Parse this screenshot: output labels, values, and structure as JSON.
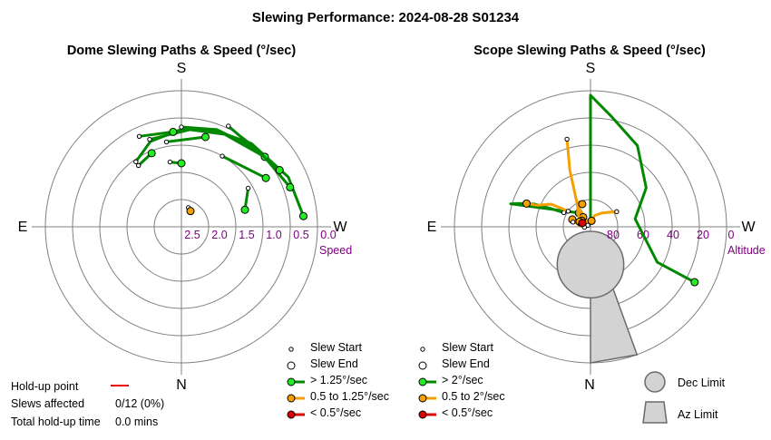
{
  "title": "Slewing Performance: 2024-08-28 S01234",
  "colors": {
    "grid": "#808080",
    "slow": "#dd0000",
    "medium": "#f5a000",
    "fast": "#008800",
    "fast_marker": "#22ee22",
    "accent_text": "#800080",
    "limit_fill": "#d3d3d3",
    "limit_stroke": "#6b6b6b",
    "holdup": "#ee0000"
  },
  "holdup": {
    "point_label": "Hold-up point",
    "slews_label": "Slews affected",
    "slews_value": "0/12 (0%)",
    "total_label": "Total hold-up time",
    "total_value": "0.0 mins"
  },
  "chart_data": [
    {
      "type": "polar-scatter",
      "title": "Dome Slewing Paths & Speed (°/sec)",
      "compass": {
        "top": "S",
        "bottom": "N",
        "left": "E",
        "right": "W"
      },
      "radial_axis_title": "Speed",
      "radial_ticks": [
        "2.5",
        "2.0",
        "1.5",
        "1.0",
        "0.5",
        "0.0"
      ],
      "radial_range": [
        3.0,
        0.0
      ],
      "legend": {
        "start": "Slew Start",
        "end": "Slew End",
        "fast": "> 1.25°/sec",
        "medium": "0.5 to 1.25°/sec",
        "slow": "< 0.5°/sec"
      },
      "slews": [
        {
          "speed": "fast",
          "path": [
            [
              145,
              1.25
            ],
            [
              160,
              1.0
            ],
            [
              180,
              0.85
            ],
            [
              200,
              0.75
            ],
            [
              220,
              0.6
            ],
            [
              245,
              0.4
            ],
            [
              265,
              0.3
            ]
          ]
        },
        {
          "speed": "fast",
          "path": [
            [
              180,
              0.8
            ],
            [
              200,
              0.72
            ],
            [
              225,
              0.6
            ],
            [
              250,
              0.45
            ]
          ]
        },
        {
          "speed": "fast",
          "path": [
            [
              160,
              0.95
            ],
            [
              185,
              0.85
            ],
            [
              205,
              0.75
            ],
            [
              230,
              0.6
            ]
          ]
        },
        {
          "speed": "fast",
          "path": [
            [
              170,
              1.1
            ],
            [
              195,
              0.95
            ]
          ]
        },
        {
          "speed": "fast",
          "path": [
            [
              145,
              1.35
            ],
            [
              158,
              1.25
            ]
          ]
        },
        {
          "speed": "fast",
          "path": [
            [
              210,
              1.2
            ],
            [
              240,
              0.85
            ]
          ]
        },
        {
          "speed": "fast",
          "path": [
            [
              205,
              0.55
            ],
            [
              240,
              0.5
            ]
          ]
        },
        {
          "speed": "fast",
          "path": [
            [
              155,
              0.8
            ],
            [
              175,
              0.9
            ]
          ]
        },
        {
          "speed": "fast",
          "path": [
            [
              170,
              1.55
            ],
            [
              180,
              1.6
            ]
          ]
        },
        {
          "speed": "fast",
          "path": [
            [
              240,
              1.3
            ],
            [
              255,
              1.55
            ]
          ]
        },
        {
          "speed": "medium",
          "path": [
            [
              200,
              2.55
            ],
            [
              210,
              2.6
            ]
          ]
        }
      ]
    },
    {
      "type": "polar-scatter",
      "title": "Scope Slewing Paths & Speed (°/sec)",
      "compass": {
        "top": "S",
        "bottom": "N",
        "left": "E",
        "right": "W"
      },
      "radial_axis_title": "Altitude",
      "radial_ticks": [
        "80",
        "60",
        "40",
        "20",
        "0"
      ],
      "radial_range": [
        90,
        0
      ],
      "legend": {
        "start": "Slew Start",
        "end": "Slew End",
        "fast": "> 2°/sec",
        "medium": "0.5 to 2°/sec",
        "slow": "< 0.5°/sec",
        "dec_limit": "Dec Limit",
        "az_limit": "Az Limit"
      },
      "limits": {
        "dec_circle": {
          "az": 0,
          "alt": 65,
          "radius_deg": 22
        },
        "az_wedge": {
          "az": [
            -20,
            0
          ],
          "alt": [
            0,
            62
          ]
        }
      },
      "slews": [
        {
          "speed": "fast",
          "path": [
            [
              180,
              86
            ],
            [
              180,
              60
            ],
            [
              180,
              12
            ],
            [
              180,
              3
            ],
            [
              190,
              15
            ],
            [
              210,
              28
            ],
            [
              235,
              45
            ],
            [
              260,
              60
            ],
            [
              298,
              40
            ],
            [
              298,
              12
            ]
          ]
        },
        {
          "speed": "fast",
          "path": [
            [
              118,
              70
            ],
            [
              115,
              62
            ],
            [
              112,
              50
            ],
            [
              108,
              40
            ],
            [
              106,
              35
            ],
            [
              140,
              78
            ]
          ]
        },
        {
          "speed": "medium",
          "path": [
            [
              165,
              30
            ],
            [
              160,
              50
            ],
            [
              148,
              74
            ],
            [
              150,
              86
            ],
            [
              143,
              82
            ]
          ]
        },
        {
          "speed": "medium",
          "path": [
            [
              125,
              72
            ],
            [
              120,
              60
            ],
            [
              112,
              52
            ],
            [
              110,
              45
            ]
          ]
        },
        {
          "speed": "medium",
          "path": [
            [
              120,
              88
            ],
            [
              130,
              80
            ],
            [
              145,
              75
            ],
            [
              155,
              72
            ],
            [
              160,
              74
            ]
          ]
        },
        {
          "speed": "medium",
          "path": [
            [
              110,
              80
            ],
            [
              120,
              84
            ],
            [
              140,
              86
            ],
            [
              125,
              83
            ]
          ]
        },
        {
          "speed": "medium",
          "path": [
            [
              85,
              86
            ],
            [
              95,
              83
            ],
            [
              112,
              77
            ]
          ]
        },
        {
          "speed": "medium",
          "path": [
            [
              240,
              70
            ],
            [
              220,
              78
            ],
            [
              200,
              82
            ],
            [
              190,
              86
            ]
          ]
        },
        {
          "speed": "medium",
          "path": [
            [
              105,
              78
            ],
            [
              115,
              82
            ]
          ]
        },
        {
          "speed": "slow",
          "path": [
            [
              105,
              83
            ],
            [
              110,
              84
            ],
            [
              112,
              84
            ],
            [
              115,
              84
            ]
          ]
        }
      ]
    }
  ]
}
